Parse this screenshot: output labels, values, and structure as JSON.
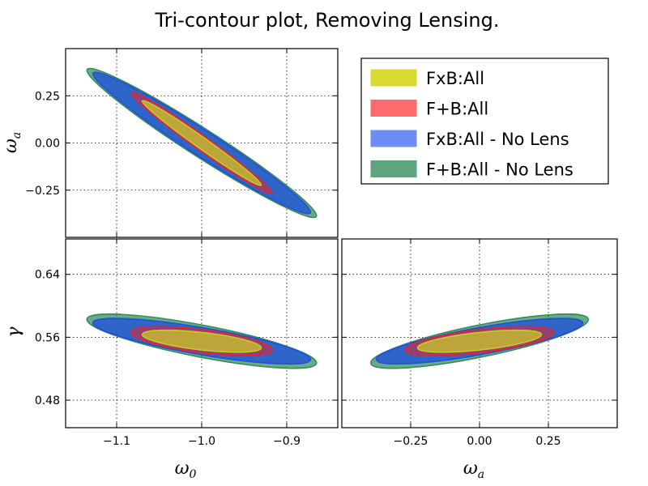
{
  "chart_data": {
    "type": "contour",
    "title": "Tri-contour plot, Removing Lensing.",
    "parameters": {
      "w0": {
        "label": "ω",
        "sub": "0",
        "lim": [
          -1.16,
          -0.84
        ],
        "ticks": [
          -1.1,
          -1.0,
          -0.9
        ],
        "tick_labels": [
          "−1.1",
          "−1.0",
          "−0.9"
        ]
      },
      "wa": {
        "label": "ω",
        "sub": "a",
        "lim": [
          -0.5,
          0.5
        ],
        "ticks": [
          -0.25,
          0.0,
          0.25
        ],
        "tick_labels": [
          "−0.25",
          "0.00",
          "0.25"
        ]
      },
      "gamma": {
        "label": "γ",
        "sub": "",
        "lim": [
          0.445,
          0.685
        ],
        "ticks": [
          0.48,
          0.56,
          0.64
        ],
        "tick_labels": [
          "0.48",
          "0.56",
          "0.64"
        ]
      }
    },
    "center": {
      "w0": -1.0,
      "wa": 0.0,
      "gamma": 0.555
    },
    "panels": [
      {
        "id": "w0-wa",
        "x": "w0",
        "y": "wa",
        "show_x_ticks": false,
        "show_y_ticks": true
      },
      {
        "id": "w0-gamma",
        "x": "w0",
        "y": "gamma",
        "show_x_ticks": true,
        "show_y_ticks": true
      },
      {
        "id": "wa-gamma",
        "x": "wa",
        "y": "gamma",
        "show_x_ticks": true,
        "show_y_ticks": false
      }
    ],
    "series": [
      {
        "name": "F+B:All - No Lens",
        "color": "#2e8b57",
        "opacity": 0.72,
        "sigma": {
          "w0": 0.135,
          "wa": 0.395,
          "gamma": 0.0345
        },
        "corr": {
          "w0-wa": -0.975,
          "w0-gamma": -0.8,
          "wa-gamma": 0.8
        }
      },
      {
        "name": "FxB:All - No Lens",
        "color": "#1f4fdc",
        "opacity": 0.78,
        "sigma": {
          "w0": 0.128,
          "wa": 0.375,
          "gamma": 0.029
        },
        "corr": {
          "w0-wa": -0.977,
          "w0-gamma": -0.8,
          "wa-gamma": 0.8
        }
      },
      {
        "name": "F+B:All",
        "color": "#e8232a",
        "opacity": 0.55,
        "sigma": {
          "w0": 0.083,
          "wa": 0.27,
          "gamma": 0.0185
        },
        "corr": {
          "w0-wa": -0.985,
          "w0-gamma": -0.6,
          "wa-gamma": 0.6
        }
      },
      {
        "name": "FxB:All",
        "color": "#cccc22",
        "opacity": 0.72,
        "sigma": {
          "w0": 0.07,
          "wa": 0.225,
          "gamma": 0.014
        },
        "corr": {
          "w0-wa": -0.987,
          "w0-gamma": -0.6,
          "wa-gamma": 0.6
        }
      }
    ],
    "legend": {
      "placement": "top-right",
      "entries": [
        {
          "label": "FxB:All",
          "color": "#dada35"
        },
        {
          "label": "F+B:All",
          "color": "#ff6a6a"
        },
        {
          "label": "FxB:All - No Lens",
          "color": "#6a8ef5"
        },
        {
          "label": "F+B:All - No Lens",
          "color": "#5ea47c"
        }
      ]
    },
    "grid": true
  }
}
